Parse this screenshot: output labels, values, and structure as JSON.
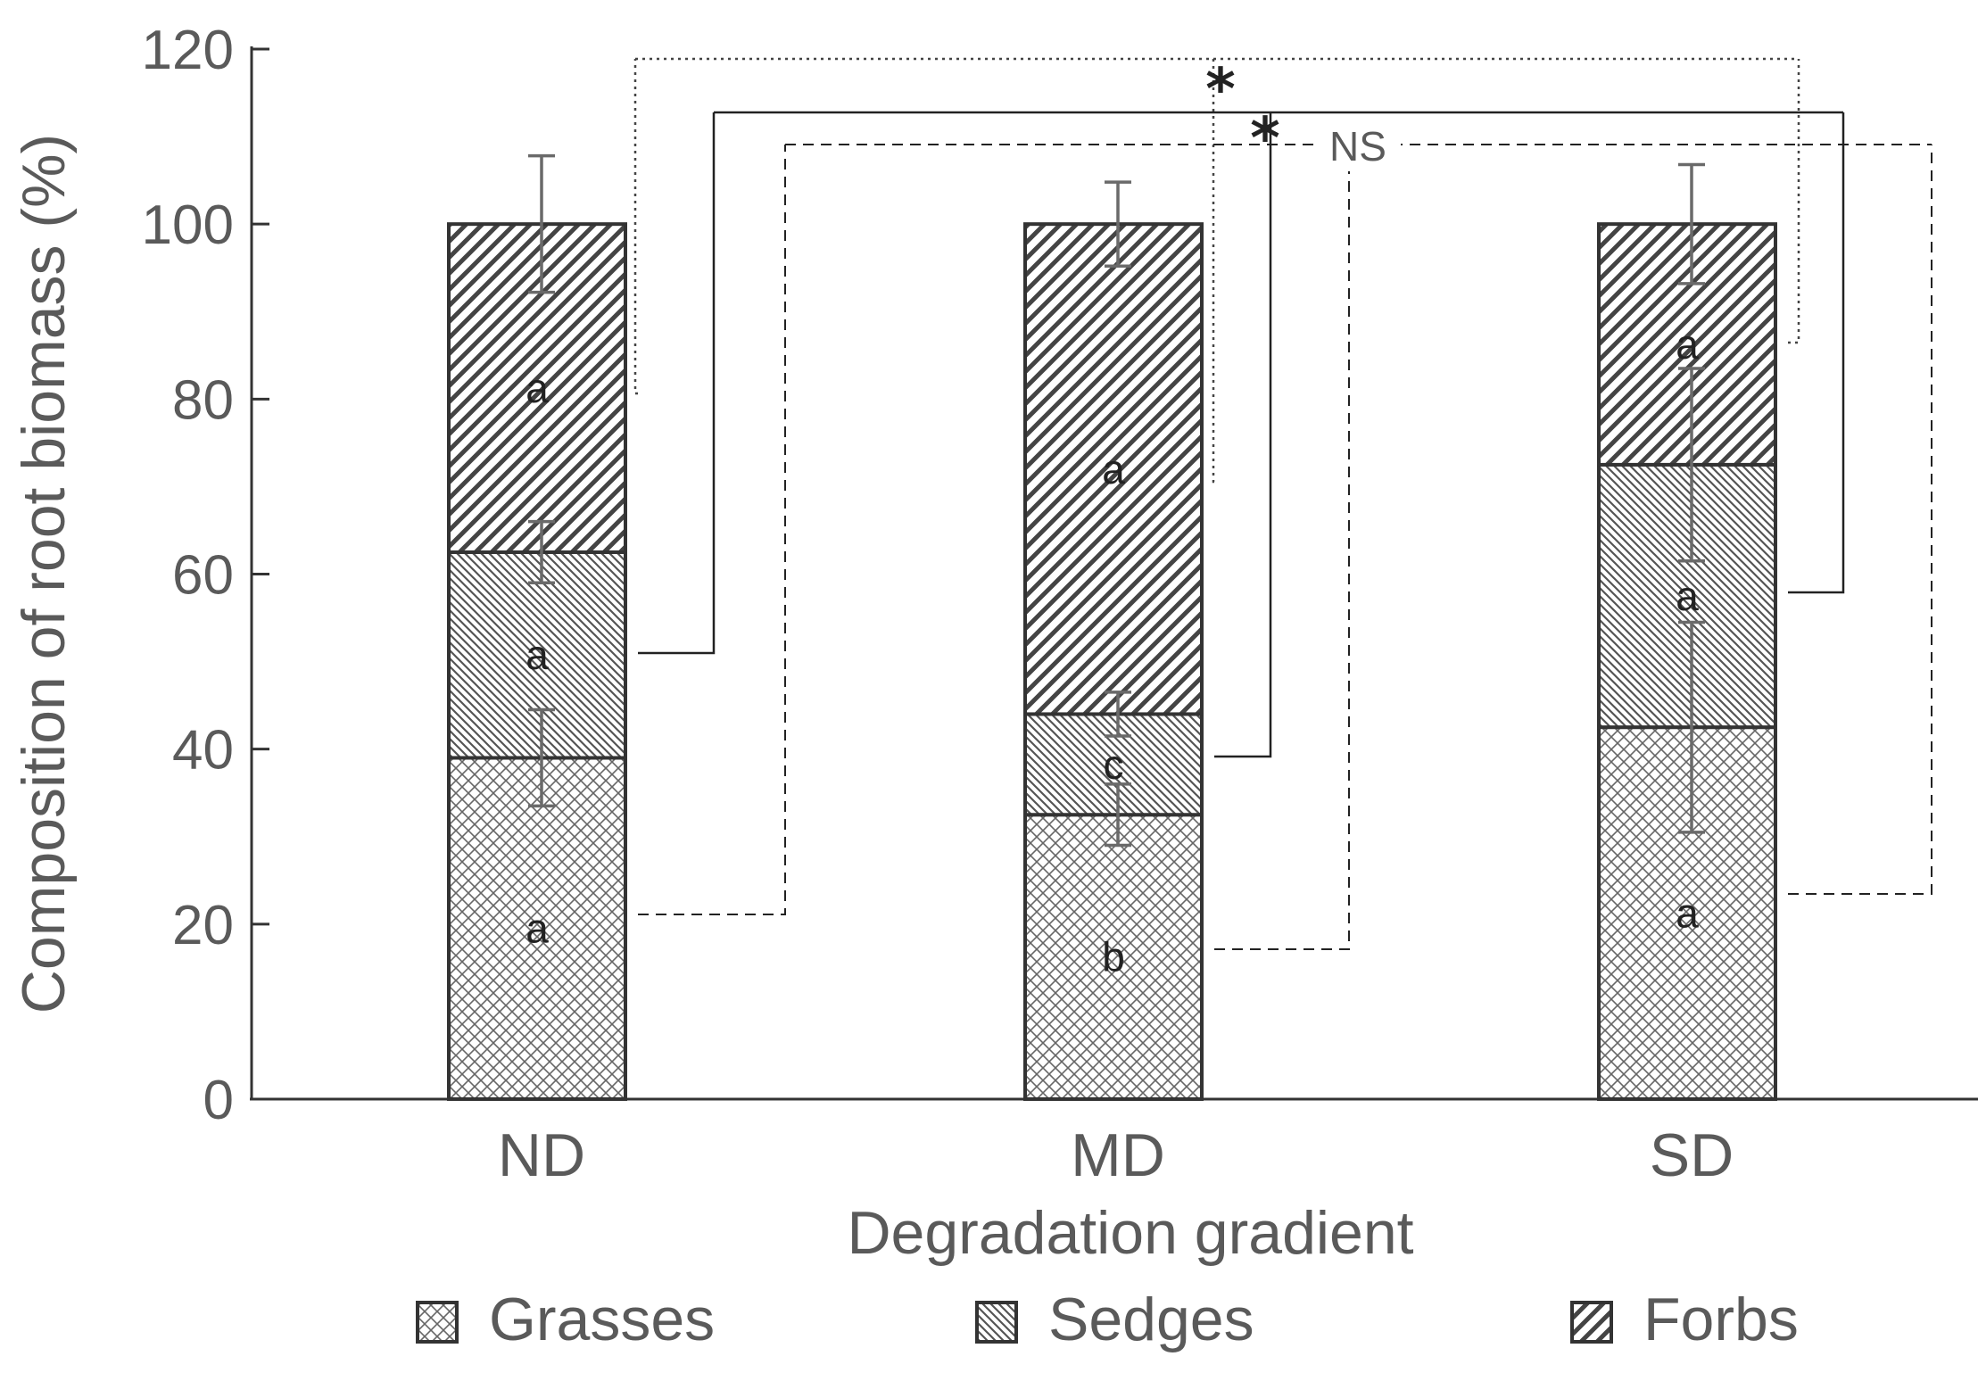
{
  "chart_data": {
    "type": "bar",
    "stacked": true,
    "title": "",
    "xlabel": "Degradation gradient",
    "ylabel": "Composition of root biomass (%)",
    "ylim": [
      0,
      120
    ],
    "yticks": [
      0,
      20,
      40,
      60,
      80,
      100,
      120
    ],
    "categories": [
      "ND",
      "MD",
      "SD"
    ],
    "series": [
      {
        "name": "Grasses",
        "pattern": "crosshatch",
        "values": [
          39,
          32.5,
          42.5
        ],
        "errors": [
          5.5,
          3.5,
          12
        ],
        "letters": [
          "a",
          "b",
          "a"
        ]
      },
      {
        "name": "Sedges",
        "pattern": "back-diagonal",
        "values": [
          23.5,
          11.5,
          30
        ],
        "errors": [
          3.5,
          2.5,
          11
        ],
        "letters": [
          "a",
          "c",
          "a"
        ]
      },
      {
        "name": "Forbs",
        "pattern": "forward-diagonal",
        "values": [
          37.5,
          56,
          27.5
        ],
        "errors": [
          7.8,
          4.8,
          6.8
        ],
        "letters": [
          "a",
          "a",
          "a"
        ]
      }
    ],
    "comparisons": [
      {
        "series": "Forbs",
        "line": "dotted",
        "label": "*"
      },
      {
        "series": "Sedges",
        "line": "solid",
        "label": "*"
      },
      {
        "series": "Grasses",
        "line": "dashed",
        "label": "NS"
      }
    ],
    "legend_position": "bottom",
    "grid": false,
    "colors": {
      "axis": "#333333",
      "text": "#5a5a5a",
      "bar_outline": "#333333",
      "pattern": "#555555",
      "error_bar": "#6a6a6a"
    }
  }
}
